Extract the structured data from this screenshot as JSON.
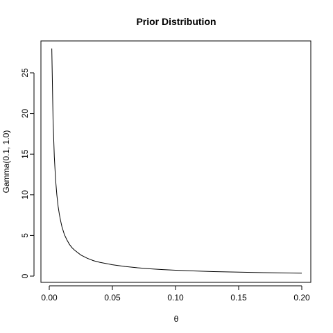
{
  "chart_data": {
    "type": "line",
    "title": "Prior Distribution",
    "xlabel": "θ",
    "ylabel": "Gamma(0.1, 1.0)",
    "xlim": [
      0.0,
      0.2
    ],
    "ylim": [
      0,
      28
    ],
    "xticks": [
      0.0,
      0.05,
      0.1,
      0.15,
      0.2
    ],
    "xtick_labels": [
      "0.00",
      "0.05",
      "0.10",
      "0.15",
      "0.20"
    ],
    "yticks": [
      0,
      5,
      10,
      15,
      20,
      25
    ],
    "ytick_labels": [
      "0",
      "5",
      "10",
      "15",
      "20",
      "25"
    ],
    "grid": false,
    "series": [
      {
        "x": [
          0.002,
          0.003,
          0.004,
          0.005,
          0.006,
          0.007,
          0.008,
          0.009,
          0.01,
          0.012,
          0.014,
          0.016,
          0.018,
          0.02,
          0.025,
          0.03,
          0.035,
          0.04,
          0.05,
          0.06,
          0.07,
          0.08,
          0.09,
          0.1,
          0.11,
          0.12,
          0.13,
          0.14,
          0.15,
          0.16,
          0.17,
          0.18,
          0.19,
          0.2
        ],
        "values": [
          28.0,
          19.3,
          14.7,
          11.9,
          10.0,
          8.6,
          7.6,
          6.8,
          6.1,
          5.1,
          4.45,
          3.9,
          3.5,
          3.2,
          2.6,
          2.2,
          1.9,
          1.7,
          1.4,
          1.18,
          1.02,
          0.9,
          0.8,
          0.73,
          0.66,
          0.61,
          0.56,
          0.52,
          0.49,
          0.46,
          0.43,
          0.4,
          0.38,
          0.36
        ]
      }
    ]
  }
}
